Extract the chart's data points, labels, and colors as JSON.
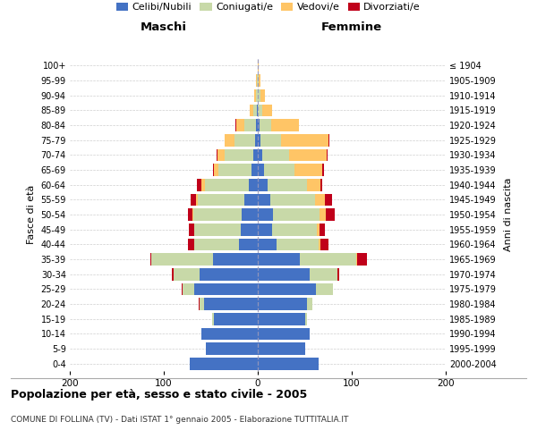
{
  "age_groups": [
    "0-4",
    "5-9",
    "10-14",
    "15-19",
    "20-24",
    "25-29",
    "30-34",
    "35-39",
    "40-44",
    "45-49",
    "50-54",
    "55-59",
    "60-64",
    "65-69",
    "70-74",
    "75-79",
    "80-84",
    "85-89",
    "90-94",
    "95-99",
    "100+"
  ],
  "birth_years": [
    "2000-2004",
    "1995-1999",
    "1990-1994",
    "1985-1989",
    "1980-1984",
    "1975-1979",
    "1970-1974",
    "1965-1969",
    "1960-1964",
    "1955-1959",
    "1950-1954",
    "1945-1949",
    "1940-1944",
    "1935-1939",
    "1930-1934",
    "1925-1929",
    "1920-1924",
    "1915-1919",
    "1910-1914",
    "1905-1909",
    "≤ 1904"
  ],
  "maschi": {
    "celibi": [
      72,
      55,
      60,
      47,
      57,
      68,
      62,
      48,
      20,
      18,
      17,
      14,
      10,
      7,
      5,
      3,
      2,
      1,
      0,
      0,
      0
    ],
    "coniugati": [
      0,
      0,
      0,
      2,
      5,
      12,
      28,
      65,
      48,
      50,
      52,
      50,
      46,
      35,
      30,
      22,
      12,
      4,
      2,
      1,
      0
    ],
    "vedovi": [
      0,
      0,
      0,
      0,
      0,
      0,
      0,
      0,
      0,
      0,
      1,
      2,
      4,
      5,
      8,
      10,
      9,
      4,
      2,
      1,
      0
    ],
    "divorziati": [
      0,
      0,
      0,
      0,
      1,
      1,
      1,
      1,
      6,
      5,
      4,
      5,
      5,
      1,
      1,
      0,
      1,
      0,
      0,
      0,
      0
    ]
  },
  "femmine": {
    "nubili": [
      65,
      50,
      55,
      50,
      52,
      62,
      55,
      45,
      20,
      15,
      16,
      13,
      10,
      7,
      5,
      3,
      2,
      0,
      0,
      0,
      0
    ],
    "coniugate": [
      0,
      0,
      0,
      2,
      6,
      18,
      30,
      60,
      45,
      48,
      50,
      48,
      42,
      32,
      28,
      22,
      12,
      5,
      3,
      1,
      0
    ],
    "vedove": [
      0,
      0,
      0,
      0,
      0,
      0,
      0,
      1,
      2,
      3,
      6,
      10,
      15,
      30,
      40,
      50,
      30,
      10,
      5,
      2,
      1
    ],
    "divorziate": [
      0,
      0,
      0,
      0,
      0,
      0,
      2,
      10,
      8,
      5,
      10,
      8,
      2,
      1,
      1,
      1,
      0,
      0,
      0,
      0,
      0
    ]
  },
  "colors": {
    "celibi": "#4472c4",
    "coniugati": "#c8d9a8",
    "vedovi": "#ffc566",
    "divorziati": "#c0001a"
  },
  "xlim": 200,
  "title": "Popolazione per età, sesso e stato civile - 2005",
  "subtitle": "COMUNE DI FOLLINA (TV) - Dati ISTAT 1° gennaio 2005 - Elaborazione TUTTITALIA.IT",
  "ylabel_left": "Fasce di età",
  "ylabel_right": "Anni di nascita",
  "xlabel_left": "Maschi",
  "xlabel_right": "Femmine",
  "background_color": "#ffffff",
  "grid_color": "#bbbbbb"
}
